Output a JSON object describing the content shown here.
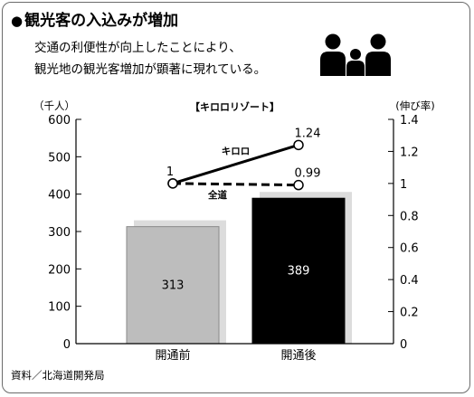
{
  "header": {
    "title_mark": "●",
    "title": "観光客の入込みが増加",
    "subtitle_line1": "交通の利便性が向上したことにより、",
    "subtitle_line2": "観光地の観光客増加が顕著に現れている。"
  },
  "icon": "family-icon",
  "source": "資料／北海道開発局",
  "colors": {
    "bar_before": "#bdbdbd",
    "bar_after": "#000000",
    "bar_shadow": "#dcdcdc",
    "line": "#000000"
  },
  "chart_data": {
    "type": "bar+line",
    "title": "【キロロリゾート】",
    "categories": [
      "開通前",
      "開通後"
    ],
    "left_axis": {
      "label": "（千人）",
      "ylim": [
        0,
        600
      ],
      "ticks": [
        "0",
        "100",
        "200",
        "300",
        "400",
        "500",
        "600"
      ]
    },
    "right_axis": {
      "label": "(伸び率)",
      "ylim": [
        0,
        1.4
      ],
      "ticks": [
        "0",
        "0.2",
        "0.4",
        "0.6",
        "0.8",
        "1",
        "1.2",
        "1.4"
      ]
    },
    "bars": {
      "values": [
        313,
        389
      ],
      "labels": [
        "313",
        "389"
      ]
    },
    "lines": [
      {
        "name": "キロロ",
        "values": [
          1,
          1.24
        ],
        "labels": [
          "1",
          "1.24"
        ],
        "style": "solid"
      },
      {
        "name": "全道",
        "values": [
          1,
          0.99
        ],
        "labels": [
          "",
          "0.99"
        ],
        "style": "dashed"
      }
    ],
    "grid": false
  }
}
